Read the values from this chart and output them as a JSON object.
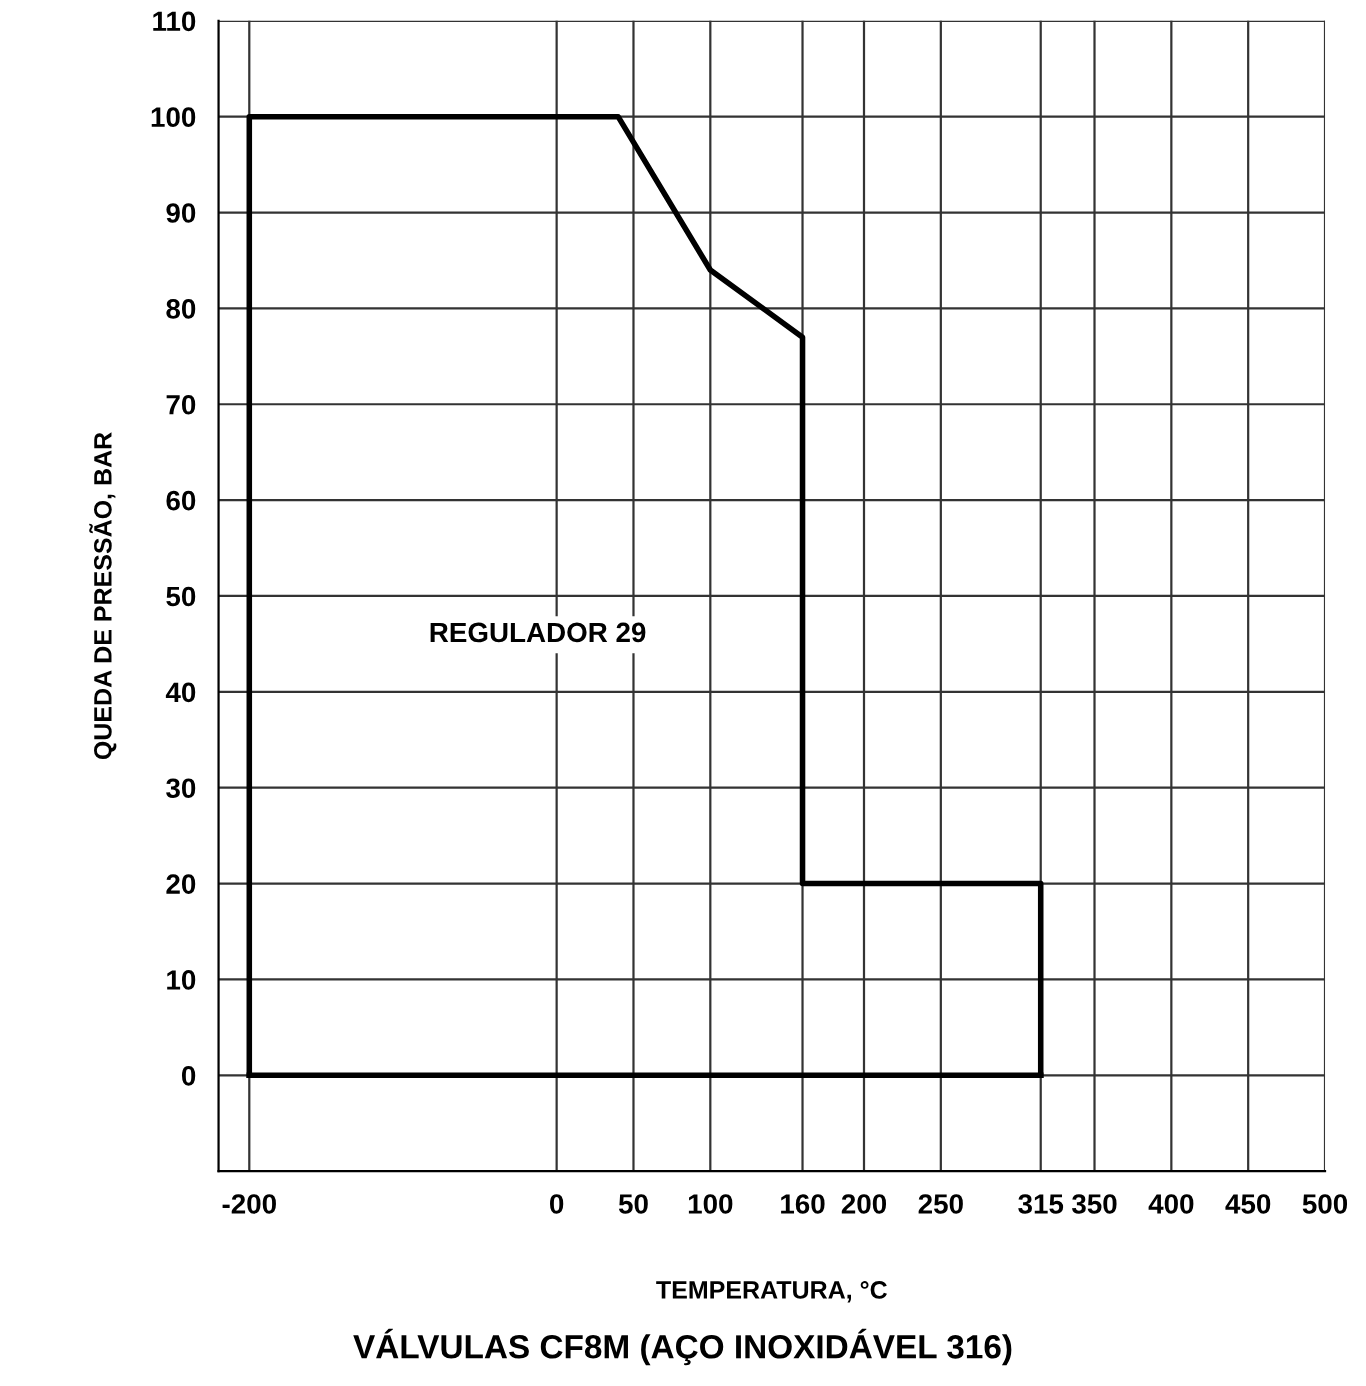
{
  "chart_data": {
    "type": "line",
    "title": "VÁLVULAS CF8M (AÇO INOXIDÁVEL 316)",
    "xlabel": "TEMPERATURA, °C",
    "ylabel": "QUEDA DE PRESSÃO, BAR",
    "annotations": [
      "REGULADOR 29"
    ],
    "series": [
      {
        "color": "#000000",
        "x": [
          -200,
          -200,
          40,
          100,
          160,
          160,
          315,
          315
        ],
        "values": [
          0,
          100,
          100,
          84,
          77,
          20,
          20,
          0
        ]
      },
      {
        "color": "#000000",
        "x": [
          -200,
          315
        ],
        "values": [
          0,
          0
        ]
      }
    ],
    "xlim": [
      -220,
      500
    ],
    "xticks": [
      -200,
      0,
      50,
      100,
      160,
      200,
      250,
      315,
      350,
      400,
      450,
      500
    ],
    "ylim": [
      -10,
      110
    ],
    "yticks": [
      0,
      10,
      20,
      30,
      40,
      50,
      60,
      70,
      80,
      90,
      100,
      110
    ],
    "grid": true,
    "marker": "none",
    "line_style": "solid"
  }
}
